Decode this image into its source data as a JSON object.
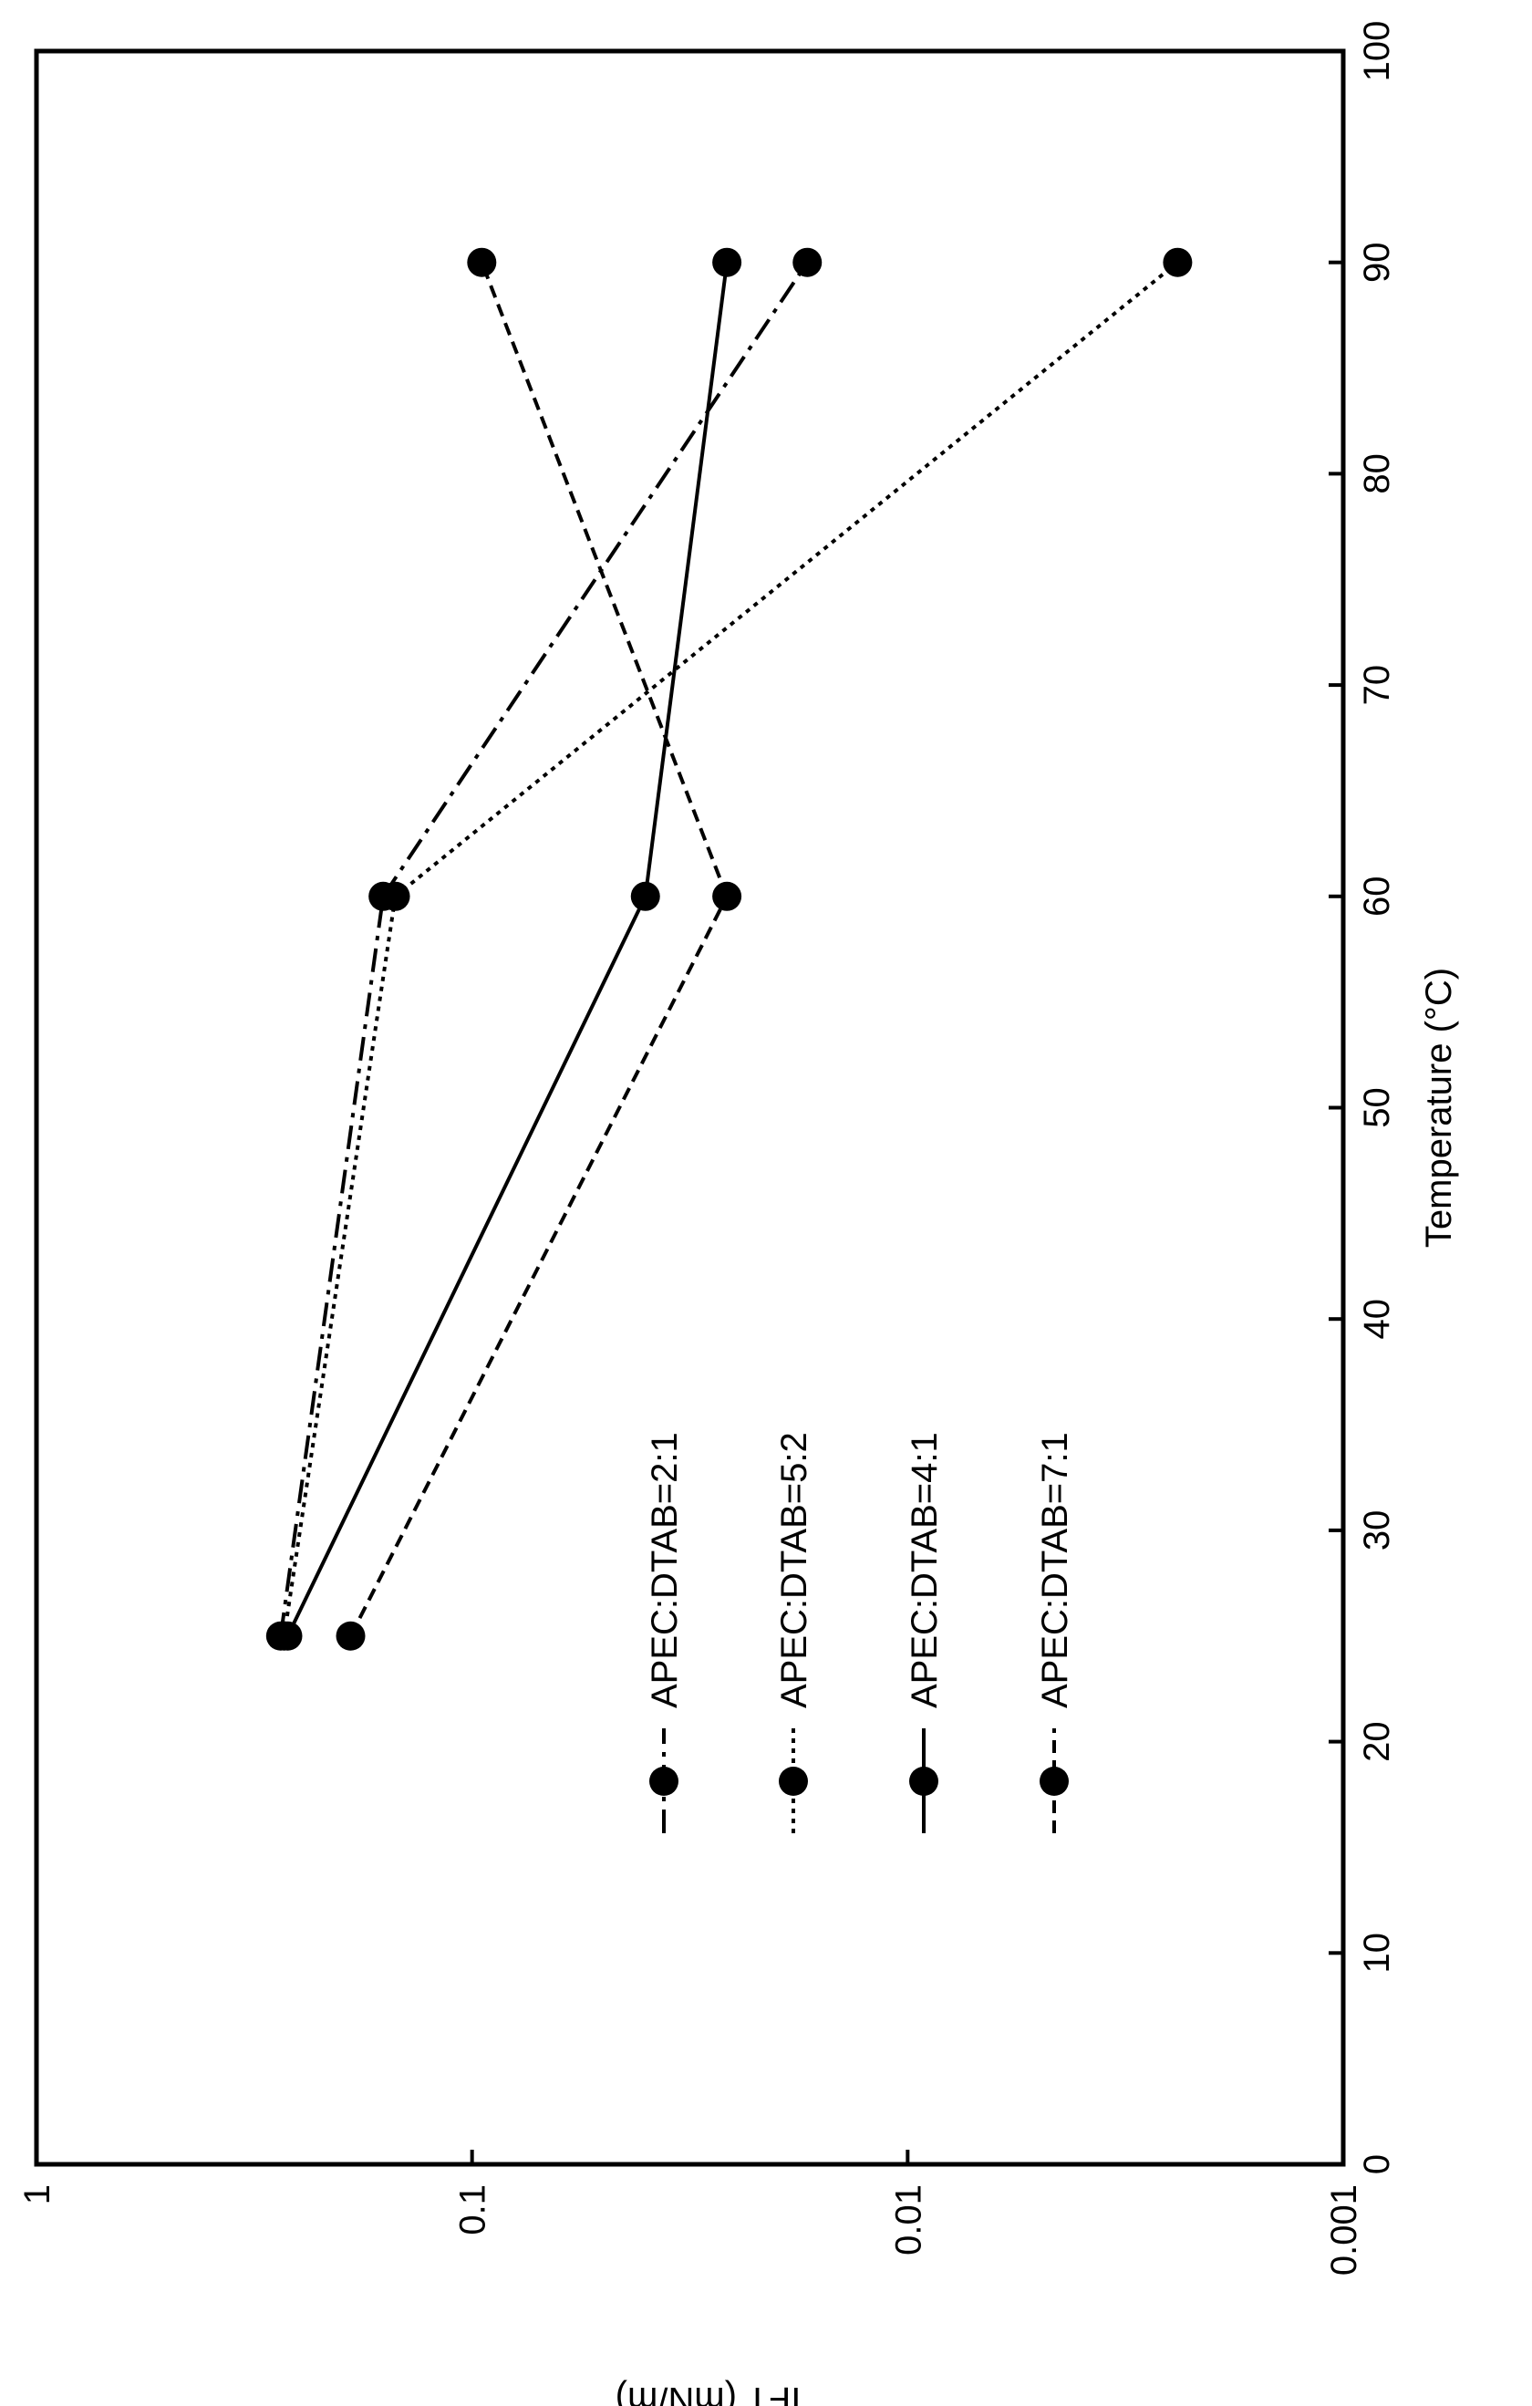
{
  "chart_data": {
    "type": "line",
    "orientation": "rotated 90 degrees counter-clockwise (page turned sideways)",
    "xlabel": "Temperature (°C)",
    "ylabel": "IFT (mN/m)",
    "xlim": [
      0,
      100
    ],
    "ylim": [
      0.001,
      1
    ],
    "y_scale": "log",
    "x_ticks": [
      "0",
      "10",
      "20",
      "30",
      "40",
      "50",
      "60",
      "70",
      "80",
      "90",
      "100"
    ],
    "y_ticks": [
      "0.001",
      "0.01",
      "0.1",
      "1"
    ],
    "grid": false,
    "legend_position": "upper-left (inside plot, near low temperatures)",
    "series": [
      {
        "name": "APEC:DTAB=2:1",
        "line_style": "dash-dot",
        "marker": "filled circle",
        "x": [
          25,
          60,
          90
        ],
        "y": [
          0.275,
          0.16,
          0.017
        ]
      },
      {
        "name": "APEC:DTAB=5:2",
        "line_style": "dotted",
        "marker": "filled circle",
        "x": [
          25,
          60,
          90
        ],
        "y": [
          0.27,
          0.15,
          0.0024
        ]
      },
      {
        "name": "APEC:DTAB=4:1",
        "line_style": "solid",
        "marker": "filled circle",
        "x": [
          25,
          60,
          90
        ],
        "y": [
          0.265,
          0.04,
          0.026
        ]
      },
      {
        "name": "APEC:DTAB=7:1",
        "line_style": "dashed",
        "marker": "filled circle",
        "x": [
          25,
          60,
          90
        ],
        "y": [
          0.19,
          0.026,
          0.095
        ]
      }
    ]
  }
}
